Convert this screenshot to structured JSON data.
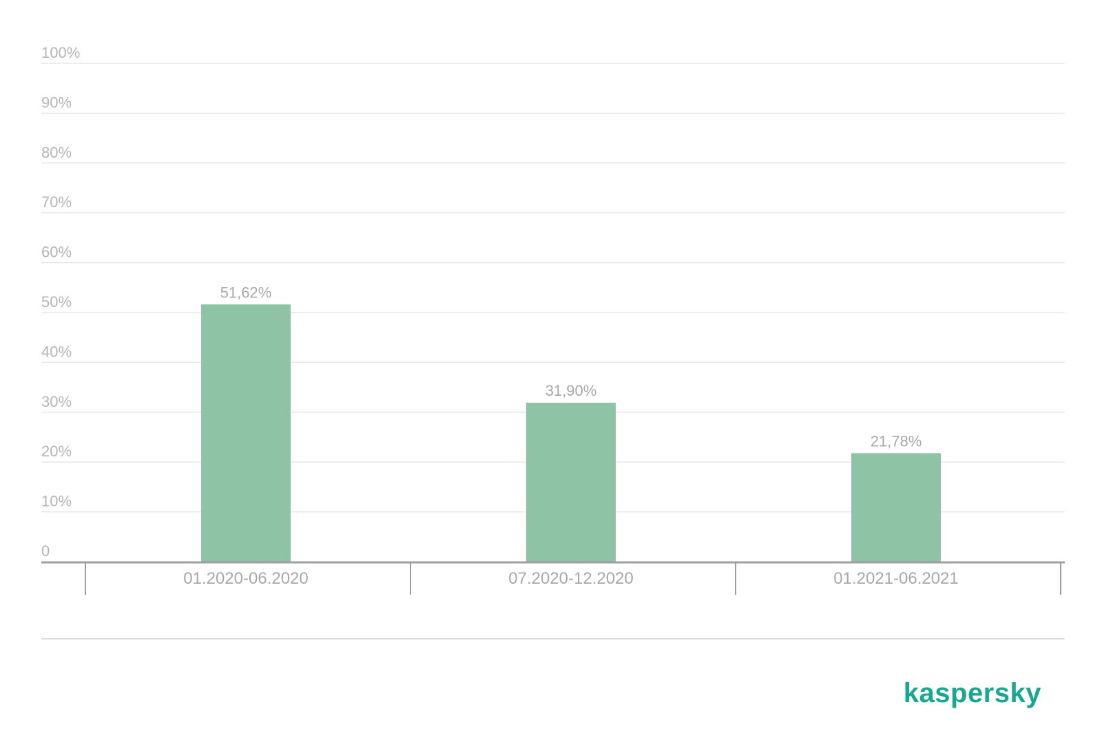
{
  "colors": {
    "bar": "#8fc3a6",
    "grid": "#e6e6e6",
    "axis": "#9e9e9e",
    "text": "#a8a8a8",
    "brand": "#1aa78f"
  },
  "brand": {
    "logo_text": "kaspersky"
  },
  "chart_data": {
    "type": "bar",
    "title": "",
    "xlabel": "",
    "ylabel": "",
    "ylim": [
      0,
      100
    ],
    "y_ticks": [
      {
        "value": 0,
        "label": "0"
      },
      {
        "value": 10,
        "label": "10%"
      },
      {
        "value": 20,
        "label": "20%"
      },
      {
        "value": 30,
        "label": "30%"
      },
      {
        "value": 40,
        "label": "40%"
      },
      {
        "value": 50,
        "label": "50%"
      },
      {
        "value": 60,
        "label": "60%"
      },
      {
        "value": 70,
        "label": "70%"
      },
      {
        "value": 80,
        "label": "80%"
      },
      {
        "value": 90,
        "label": "90%"
      },
      {
        "value": 100,
        "label": "100%"
      }
    ],
    "grid": true,
    "legend": "none",
    "categories": [
      "01.2020-06.2020",
      "07.2020-12.2020",
      "01.2021-06.2021"
    ],
    "values": [
      51.62,
      31.9,
      21.78
    ],
    "data_labels": [
      "51,62%",
      "31,90%",
      "21,78%"
    ]
  }
}
